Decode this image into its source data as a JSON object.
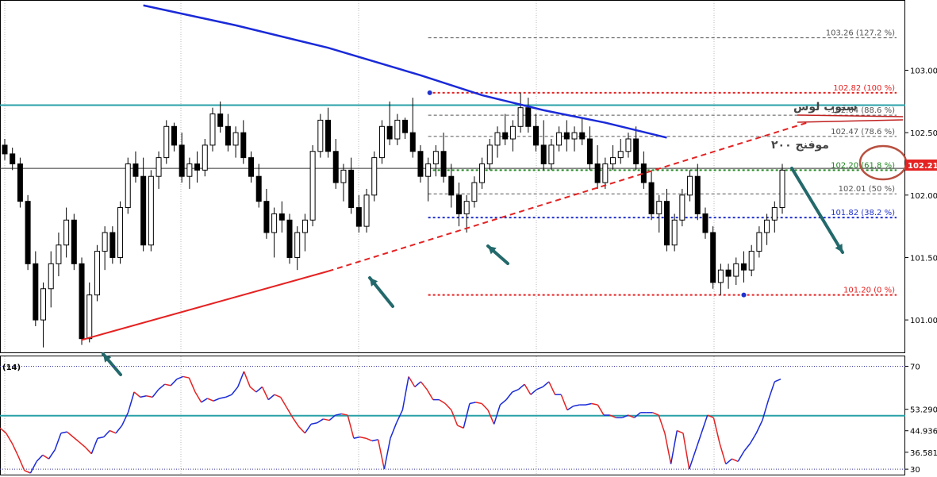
{
  "chart_data": [
    {
      "type": "candlestick",
      "price_axis": {
        "ticks": [
          "103.000",
          "102.500",
          "102.000",
          "101.500",
          "101.000"
        ],
        "tick_values": [
          103.0,
          102.5,
          102.0,
          101.5,
          101.0
        ],
        "range": [
          100.74,
          103.55
        ],
        "current_price_label": "102.214",
        "current_price": 102.214
      },
      "candles": [
        [
          102.4,
          102.45,
          102.28,
          102.33
        ],
        [
          102.33,
          102.38,
          102.2,
          102.25
        ],
        [
          102.25,
          102.3,
          101.9,
          101.95
        ],
        [
          101.95,
          102.0,
          101.4,
          101.45
        ],
        [
          101.45,
          101.55,
          100.95,
          101.0
        ],
        [
          101.0,
          101.3,
          100.78,
          101.25
        ],
        [
          101.25,
          101.55,
          101.1,
          101.45
        ],
        [
          101.45,
          101.7,
          101.35,
          101.6
        ],
        [
          101.6,
          101.9,
          101.5,
          101.8
        ],
        [
          101.8,
          101.85,
          101.4,
          101.45
        ],
        [
          101.45,
          101.5,
          100.8,
          100.85
        ],
        [
          100.85,
          101.3,
          100.82,
          101.2
        ],
        [
          101.2,
          101.6,
          101.15,
          101.55
        ],
        [
          101.55,
          101.75,
          101.4,
          101.7
        ],
        [
          101.7,
          101.75,
          101.45,
          101.5
        ],
        [
          101.5,
          101.95,
          101.45,
          101.9
        ],
        [
          101.9,
          102.3,
          101.85,
          102.25
        ],
        [
          102.25,
          102.35,
          102.1,
          102.15
        ],
        [
          102.15,
          102.3,
          101.55,
          101.6
        ],
        [
          101.6,
          102.2,
          101.55,
          102.15
        ],
        [
          102.15,
          102.35,
          102.05,
          102.3
        ],
        [
          102.3,
          102.6,
          102.25,
          102.55
        ],
        [
          102.55,
          102.58,
          102.35,
          102.4
        ],
        [
          102.4,
          102.5,
          102.1,
          102.15
        ],
        [
          102.15,
          102.3,
          102.05,
          102.25
        ],
        [
          102.25,
          102.35,
          102.1,
          102.2
        ],
        [
          102.2,
          102.45,
          102.15,
          102.4
        ],
        [
          102.4,
          102.7,
          102.35,
          102.65
        ],
        [
          102.65,
          102.75,
          102.5,
          102.55
        ],
        [
          102.55,
          102.65,
          102.35,
          102.4
        ],
        [
          102.4,
          102.55,
          102.3,
          102.5
        ],
        [
          102.5,
          102.6,
          102.25,
          102.3
        ],
        [
          102.3,
          102.35,
          102.1,
          102.15
        ],
        [
          102.15,
          102.25,
          101.9,
          101.95
        ],
        [
          101.95,
          102.05,
          101.65,
          101.7
        ],
        [
          101.7,
          101.9,
          101.5,
          101.85
        ],
        [
          101.85,
          101.95,
          101.7,
          101.8
        ],
        [
          101.8,
          101.85,
          101.45,
          101.5
        ],
        [
          101.5,
          101.75,
          101.4,
          101.7
        ],
        [
          101.7,
          101.85,
          101.55,
          101.8
        ],
        [
          101.8,
          102.4,
          101.75,
          102.35
        ],
        [
          102.35,
          102.65,
          102.3,
          102.6
        ],
        [
          102.6,
          102.7,
          102.3,
          102.35
        ],
        [
          102.35,
          102.45,
          102.05,
          102.1
        ],
        [
          102.1,
          102.25,
          101.95,
          102.2
        ],
        [
          102.2,
          102.3,
          101.85,
          101.9
        ],
        [
          101.9,
          102.0,
          101.7,
          101.75
        ],
        [
          101.75,
          102.05,
          101.7,
          102.0
        ],
        [
          102.0,
          102.35,
          101.95,
          102.3
        ],
        [
          102.3,
          102.6,
          102.25,
          102.55
        ],
        [
          102.55,
          102.75,
          102.4,
          102.45
        ],
        [
          102.45,
          102.65,
          102.4,
          102.6
        ],
        [
          102.6,
          102.62,
          102.45,
          102.5
        ],
        [
          102.5,
          102.78,
          102.3,
          102.35
        ],
        [
          102.35,
          102.4,
          102.1,
          102.15
        ],
        [
          102.15,
          102.3,
          101.95,
          102.25
        ],
        [
          102.25,
          102.4,
          102.15,
          102.35
        ],
        [
          102.35,
          102.5,
          102.1,
          102.15
        ],
        [
          102.15,
          102.25,
          101.9,
          102.0
        ],
        [
          102.0,
          102.1,
          101.75,
          101.85
        ],
        [
          101.85,
          102.0,
          101.7,
          101.95
        ],
        [
          101.95,
          102.15,
          101.9,
          102.1
        ],
        [
          102.1,
          102.3,
          102.05,
          102.25
        ],
        [
          102.25,
          102.45,
          102.2,
          102.4
        ],
        [
          102.4,
          102.55,
          102.3,
          102.5
        ],
        [
          102.5,
          102.65,
          102.4,
          102.45
        ],
        [
          102.45,
          102.6,
          102.35,
          102.55
        ],
        [
          102.55,
          102.82,
          102.5,
          102.7
        ],
        [
          102.7,
          102.78,
          102.5,
          102.55
        ],
        [
          102.55,
          102.65,
          102.35,
          102.4
        ],
        [
          102.4,
          102.6,
          102.2,
          102.25
        ],
        [
          102.25,
          102.45,
          102.2,
          102.4
        ],
        [
          102.4,
          102.55,
          102.35,
          102.5
        ],
        [
          102.5,
          102.6,
          102.35,
          102.45
        ],
        [
          102.45,
          102.55,
          102.35,
          102.5
        ],
        [
          102.5,
          102.62,
          102.4,
          102.45
        ],
        [
          102.45,
          102.55,
          102.2,
          102.25
        ],
        [
          102.25,
          102.4,
          102.05,
          102.1
        ],
        [
          102.1,
          102.3,
          102.05,
          102.25
        ],
        [
          102.25,
          102.4,
          102.2,
          102.3
        ],
        [
          102.3,
          102.45,
          102.25,
          102.35
        ],
        [
          102.35,
          102.5,
          102.3,
          102.45
        ],
        [
          102.45,
          102.55,
          102.2,
          102.25
        ],
        [
          102.25,
          102.35,
          102.05,
          102.1
        ],
        [
          102.1,
          102.2,
          101.8,
          101.85
        ],
        [
          101.85,
          102.0,
          101.7,
          101.95
        ],
        [
          101.95,
          102.05,
          101.55,
          101.6
        ],
        [
          101.6,
          101.85,
          101.55,
          101.8
        ],
        [
          101.8,
          102.05,
          101.75,
          102.0
        ],
        [
          102.0,
          102.2,
          101.95,
          102.15
        ],
        [
          102.15,
          102.25,
          101.8,
          101.85
        ],
        [
          101.85,
          101.9,
          101.65,
          101.7
        ],
        [
          101.7,
          101.75,
          101.25,
          101.3
        ],
        [
          101.3,
          101.45,
          101.2,
          101.4
        ],
        [
          101.4,
          101.45,
          101.25,
          101.35
        ],
        [
          101.35,
          101.5,
          101.28,
          101.45
        ],
        [
          101.45,
          101.55,
          101.3,
          101.4
        ],
        [
          101.4,
          101.6,
          101.35,
          101.55
        ],
        [
          101.55,
          101.75,
          101.5,
          101.7
        ],
        [
          101.7,
          101.85,
          101.6,
          101.8
        ],
        [
          101.8,
          101.95,
          101.7,
          101.9
        ],
        [
          101.9,
          102.25,
          101.85,
          102.2
        ]
      ],
      "moving_average": {
        "label": "موفنج ٢٠٠",
        "values": [
          [
            18,
            103.52
          ],
          [
            30,
            103.36
          ],
          [
            42,
            103.18
          ],
          [
            54,
            102.96
          ],
          [
            62,
            102.8
          ],
          [
            70,
            102.68
          ],
          [
            78,
            102.58
          ],
          [
            86,
            102.46
          ]
        ]
      },
      "horizontal_levels": [
        {
          "value": 102.72,
          "color": "#2aa0a8"
        },
        {
          "value": 102.214,
          "color": "#333333"
        }
      ],
      "trendlines": [
        {
          "from": [
            10,
            100.84
          ],
          "to": [
            42,
            101.39
          ],
          "style": "solid",
          "color": "#e52222"
        },
        {
          "from": [
            42,
            101.39
          ],
          "to": [
            103,
            102.58
          ],
          "style": "dashed",
          "color": "#e52222"
        }
      ],
      "fibonacci": {
        "from_index": 55,
        "to_index": 103,
        "levels": [
          {
            "label": "103.26 (127.2 %)",
            "value": 103.26,
            "color": "#555555",
            "style": "dashed"
          },
          {
            "label": "102.82 (100 %)",
            "value": 102.82,
            "color": "#e52222",
            "style": "dotted-bold"
          },
          {
            "label": "102.64 (88.6 %)",
            "value": 102.64,
            "color": "#555555",
            "style": "dashed"
          },
          {
            "label": "102.47 (78.6 %)",
            "value": 102.47,
            "color": "#555555",
            "style": "dashed"
          },
          {
            "label": "102.20 (61.8 %)",
            "value": 102.2,
            "color": "#228822",
            "style": "dotted-bold"
          },
          {
            "label": "102.01 (50 %)",
            "value": 102.01,
            "color": "#555555",
            "style": "dashed"
          },
          {
            "label": "101.82 (38.2 %)",
            "value": 101.82,
            "color": "#2233cc",
            "style": "dotted-bold"
          },
          {
            "label": "101.20 (0 %)",
            "value": 101.2,
            "color": "#e52222",
            "style": "dotted-bold"
          }
        ]
      },
      "annotations": [
        {
          "text": "ستوب لوس",
          "color": "#444444"
        },
        {
          "text": "موفنج ٢٠٠",
          "color": "#444444"
        }
      ]
    },
    {
      "type": "line",
      "indicator_label": "(14)",
      "y_ticks": [
        "70",
        "53.290",
        "44.936",
        "36.581",
        "30"
      ],
      "y_tick_values": [
        70,
        53.29,
        44.936,
        36.581,
        30
      ],
      "ylim": [
        28.5,
        72
      ],
      "reference_level": 50.8,
      "values": [
        46,
        44,
        40,
        35,
        29.5,
        28.5,
        33,
        35.5,
        34,
        37.5,
        44,
        44.5,
        42.5,
        40.5,
        38.5,
        36,
        42,
        42.5,
        45,
        44,
        47,
        52,
        60,
        58,
        58.5,
        58,
        61,
        63,
        62.5,
        65,
        66,
        65.5,
        60,
        56,
        57.5,
        56.5,
        57.5,
        58,
        59,
        62,
        68,
        62,
        60,
        62,
        57,
        59,
        58,
        54,
        50,
        46.5,
        44,
        47.5,
        48,
        49.5,
        49,
        51,
        51.5,
        51,
        42,
        42.5,
        42,
        41,
        41.5,
        30,
        42,
        48,
        53,
        66,
        62,
        64,
        61,
        57,
        57,
        55.5,
        53,
        47,
        46,
        55.5,
        56,
        55.5,
        53,
        47.5,
        55,
        57,
        60,
        61,
        63,
        59,
        61,
        62,
        64,
        59,
        59,
        53,
        54.5,
        55,
        55,
        55.5,
        55,
        51,
        51,
        50,
        50,
        51,
        50,
        52,
        52,
        52,
        51,
        44,
        32,
        45,
        44,
        30,
        37,
        44,
        51,
        50,
        40,
        32,
        34,
        33,
        37,
        40,
        44,
        49,
        57,
        64,
        65
      ]
    }
  ]
}
